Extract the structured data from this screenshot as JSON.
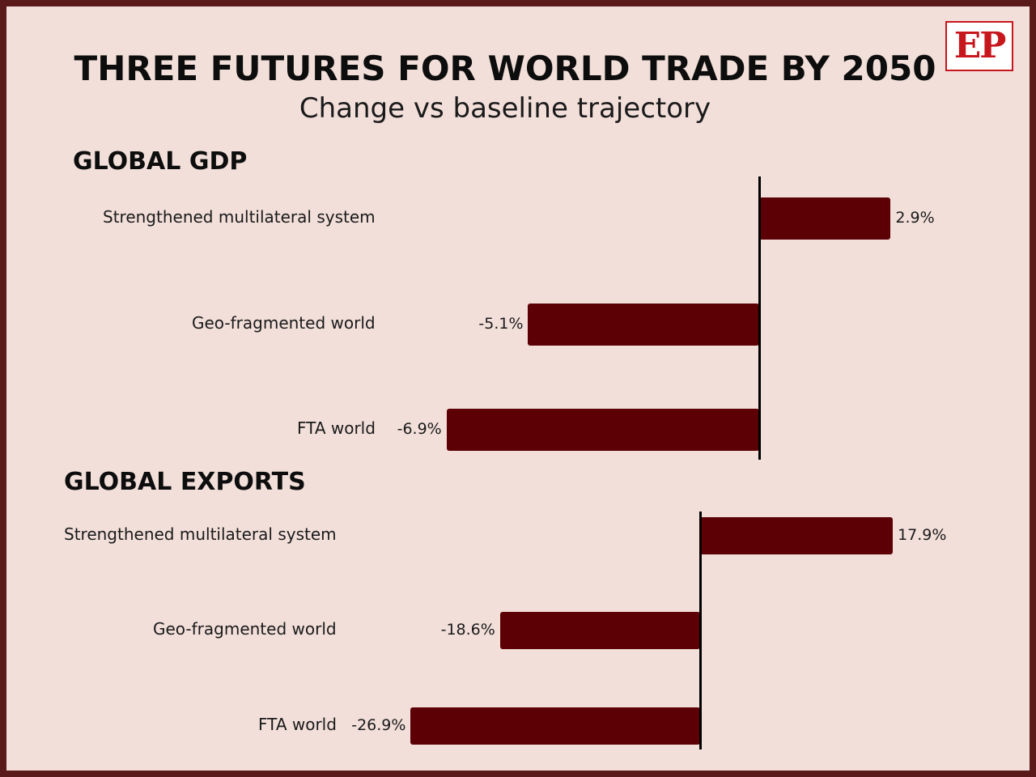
{
  "header": {
    "title": "THREE FUTURES FOR WORLD TRADE BY 2050",
    "subtitle": "Change vs baseline trajectory",
    "logo_text": "EP"
  },
  "colors": {
    "bar": "#5c0006",
    "background": "#f2dfda",
    "frame": "#5a1a1a",
    "logo": "#c8161d"
  },
  "chart_data": [
    {
      "type": "bar",
      "orientation": "horizontal",
      "title": "GLOBAL GDP",
      "categories": [
        "Strengthened multilateral system",
        "Geo-fragmented world",
        "FTA world"
      ],
      "values": [
        2.9,
        -5.1,
        -6.9
      ],
      "value_labels": [
        "2.9%",
        "-5.1%",
        "-6.9%"
      ],
      "unit": "%"
    },
    {
      "type": "bar",
      "orientation": "horizontal",
      "title": "GLOBAL EXPORTS",
      "categories": [
        "Strengthened multilateral system",
        "Geo-fragmented world",
        "FTA world"
      ],
      "values": [
        17.9,
        -18.6,
        -26.9
      ],
      "value_labels": [
        "17.9%",
        "-18.6%",
        "-26.9%"
      ],
      "unit": "%"
    }
  ]
}
